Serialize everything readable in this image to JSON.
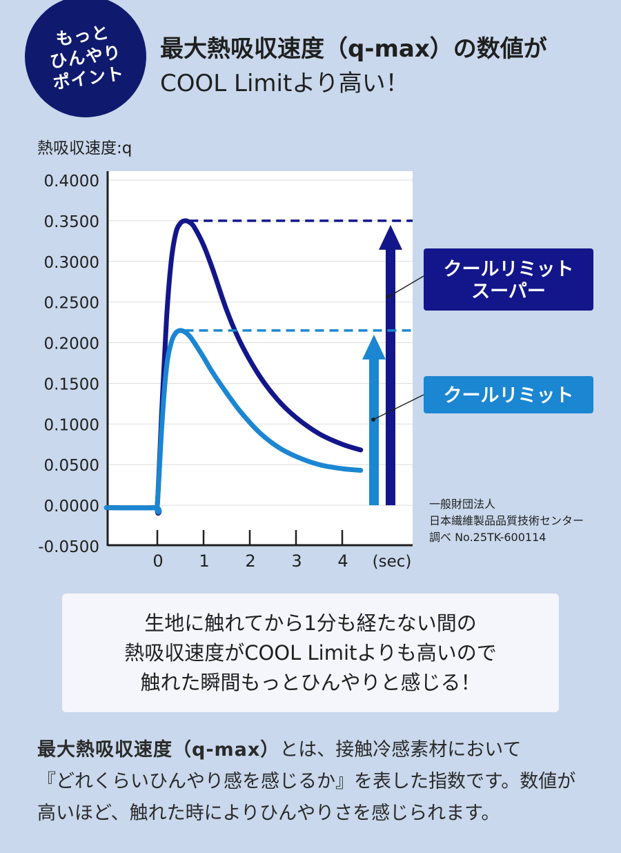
{
  "badge": {
    "lines": [
      "もっと",
      "ひんやり",
      "ポイント"
    ]
  },
  "headline": {
    "line1": "最大熱吸収速度（q-max）の数値が",
    "line2": "COOL Limitより高い！"
  },
  "chart_data": {
    "type": "line",
    "ylabel": "熱吸収速度:q",
    "xlabel": "(sec)",
    "ylim": [
      -0.05,
      0.4
    ],
    "xlim": [
      -1.1,
      5.4
    ],
    "yticks": [
      "0.4000",
      "0.3500",
      "0.3000",
      "0.2500",
      "0.2000",
      "0.1500",
      "0.1000",
      "0.0500",
      "0.0000",
      "-0.0500"
    ],
    "xticks": [
      "0",
      "1",
      "2",
      "3",
      "4"
    ],
    "grid": true,
    "series": [
      {
        "name": "クールリミットスーパー",
        "label_lines": [
          "クールリミット",
          "スーパー"
        ],
        "color": "#13168a",
        "q_max": 0.35,
        "x": [
          -1.1,
          -0.05,
          0.0,
          0.1,
          0.2,
          0.3,
          0.4,
          0.5,
          0.6,
          0.7,
          0.8,
          1.0,
          1.2,
          1.5,
          1.8,
          2.2,
          2.6,
          3.0,
          3.5,
          4.0,
          4.4
        ],
        "y": [
          -0.003,
          -0.003,
          0.0,
          0.12,
          0.23,
          0.3,
          0.335,
          0.347,
          0.35,
          0.348,
          0.342,
          0.32,
          0.29,
          0.24,
          0.2,
          0.16,
          0.13,
          0.108,
          0.088,
          0.075,
          0.068
        ]
      },
      {
        "name": "クールリミット",
        "label_lines": [
          "クールリミット"
        ],
        "color": "#1b86d1",
        "q_max": 0.215,
        "x": [
          -1.1,
          -0.05,
          0.0,
          0.1,
          0.2,
          0.3,
          0.4,
          0.5,
          0.6,
          0.7,
          0.8,
          1.0,
          1.2,
          1.5,
          1.8,
          2.2,
          2.6,
          3.0,
          3.5,
          4.0,
          4.4
        ],
        "y": [
          -0.003,
          -0.003,
          0.0,
          0.1,
          0.17,
          0.2,
          0.212,
          0.215,
          0.213,
          0.208,
          0.2,
          0.182,
          0.163,
          0.138,
          0.115,
          0.09,
          0.072,
          0.06,
          0.05,
          0.045,
          0.043
        ]
      }
    ],
    "source_lines": [
      "一般財団法人",
      "日本繊維製品品質技術センター",
      "調べ No.25TK-600114"
    ]
  },
  "callout": {
    "lines": [
      "生地に触れてから1分も経たない間の",
      "熱吸収速度がCOOL Limitよりも高いので",
      "触れた瞬間もっとひんやりと感じる！"
    ]
  },
  "description": {
    "term": "最大熱吸収速度（q-max）",
    "line1_rest": "とは、接触冷感素材において",
    "line2": "『どれくらいひんやり感を感じるか』を表した指数です。数値が",
    "line3": "高いほど、触れた時によりひんやりさを感じられます。"
  }
}
